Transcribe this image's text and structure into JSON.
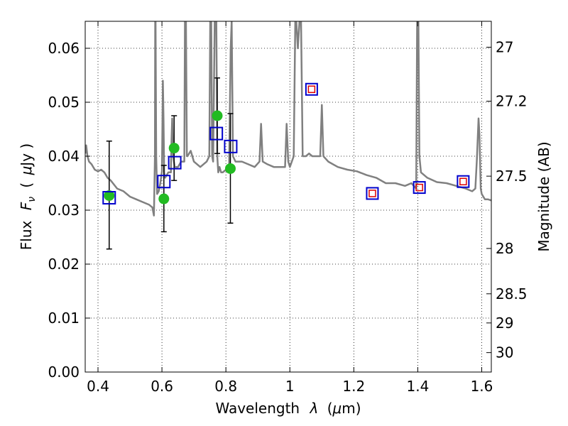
{
  "chart_data": {
    "type": "scatter",
    "xlabel_text": "Wavelength",
    "xlabel_symbol": "λ",
    "xlabel_unit_open": "(",
    "xlabel_unit_mu": "μ",
    "xlabel_unit_rest": "m)",
    "ylabel_text": "Flux",
    "ylabel_symbol": "F",
    "ylabel_subscript": "ν",
    "ylabel_unit_open": "(",
    "ylabel_unit_mu": "μ",
    "ylabel_unit_rest": "Jy )",
    "y2label": "Magnitude (AB)",
    "xlim": [
      0.36,
      1.63
    ],
    "ylim": [
      0.0,
      0.065
    ],
    "grid": true,
    "x_ticks": [
      {
        "value": 0.4,
        "label": "0.4"
      },
      {
        "value": 0.6,
        "label": "0.6"
      },
      {
        "value": 0.8,
        "label": "0.8"
      },
      {
        "value": 1.0,
        "label": "1"
      },
      {
        "value": 1.2,
        "label": "1.2"
      },
      {
        "value": 1.4,
        "label": "1.4"
      },
      {
        "value": 1.6,
        "label": "1.6"
      }
    ],
    "y_ticks": [
      {
        "value": 0.0,
        "label": "0.00"
      },
      {
        "value": 0.01,
        "label": "0.01"
      },
      {
        "value": 0.02,
        "label": "0.02"
      },
      {
        "value": 0.03,
        "label": "0.03"
      },
      {
        "value": 0.04,
        "label": "0.04"
      },
      {
        "value": 0.05,
        "label": "0.05"
      },
      {
        "value": 0.06,
        "label": "0.06"
      }
    ],
    "y2_ticks": [
      {
        "flux": 0.0602,
        "label": "27"
      },
      {
        "flux": 0.0502,
        "label": "27.2"
      },
      {
        "flux": 0.0363,
        "label": "27.5"
      },
      {
        "flux": 0.0229,
        "label": "28"
      },
      {
        "flux": 0.0145,
        "label": "28.5"
      },
      {
        "flux": 0.0091,
        "label": "29"
      },
      {
        "flux": 0.0036,
        "label": "30"
      }
    ],
    "series": [
      {
        "kind": "line",
        "color": "#808080",
        "x": [
          0.36,
          0.363,
          0.367,
          0.372,
          0.38,
          0.39,
          0.4,
          0.41,
          0.42,
          0.43,
          0.44,
          0.46,
          0.48,
          0.5,
          0.52,
          0.54,
          0.56,
          0.57,
          0.575,
          0.578,
          0.579,
          0.58,
          0.582,
          0.585,
          0.59,
          0.595,
          0.6,
          0.603,
          0.605,
          0.607,
          0.61,
          0.62,
          0.628,
          0.63,
          0.632,
          0.635,
          0.64,
          0.65,
          0.66,
          0.67,
          0.672,
          0.675,
          0.678,
          0.68,
          0.69,
          0.7,
          0.72,
          0.74,
          0.748,
          0.751,
          0.754,
          0.757,
          0.76,
          0.765,
          0.77,
          0.773,
          0.776,
          0.78,
          0.785,
          0.79,
          0.8,
          0.81,
          0.815,
          0.818,
          0.822,
          0.83,
          0.85,
          0.87,
          0.89,
          0.905,
          0.91,
          0.915,
          0.93,
          0.95,
          0.97,
          0.985,
          0.99,
          0.995,
          1.0,
          1.012,
          1.017,
          1.02,
          1.025,
          1.03,
          1.035,
          1.04,
          1.045,
          1.05,
          1.06,
          1.07,
          1.08,
          1.095,
          1.1,
          1.105,
          1.12,
          1.15,
          1.18,
          1.21,
          1.24,
          1.27,
          1.3,
          1.33,
          1.36,
          1.38,
          1.395,
          1.398,
          1.4,
          1.402,
          1.405,
          1.41,
          1.43,
          1.46,
          1.49,
          1.52,
          1.55,
          1.57,
          1.58,
          1.585,
          1.59,
          1.593,
          1.597,
          1.6,
          1.61,
          1.62,
          1.63
        ],
        "y": [
          0.0405,
          0.042,
          0.04,
          0.039,
          0.0385,
          0.0375,
          0.0372,
          0.0375,
          0.037,
          0.036,
          0.0355,
          0.034,
          0.0335,
          0.0325,
          0.032,
          0.0315,
          0.031,
          0.0305,
          0.029,
          0.04,
          0.065,
          0.065,
          0.04,
          0.033,
          0.0335,
          0.035,
          0.0372,
          0.054,
          0.047,
          0.037,
          0.036,
          0.037,
          0.037,
          0.043,
          0.047,
          0.04,
          0.038,
          0.038,
          0.039,
          0.039,
          0.065,
          0.065,
          0.04,
          0.04,
          0.041,
          0.039,
          0.038,
          0.039,
          0.04,
          0.065,
          0.065,
          0.04,
          0.039,
          0.065,
          0.065,
          0.04,
          0.037,
          0.038,
          0.037,
          0.037,
          0.0375,
          0.038,
          0.06,
          0.065,
          0.04,
          0.039,
          0.039,
          0.0385,
          0.038,
          0.039,
          0.046,
          0.039,
          0.0385,
          0.038,
          0.038,
          0.038,
          0.046,
          0.039,
          0.038,
          0.04,
          0.065,
          0.065,
          0.06,
          0.065,
          0.065,
          0.04,
          0.04,
          0.04,
          0.0405,
          0.04,
          0.04,
          0.04,
          0.0495,
          0.04,
          0.039,
          0.038,
          0.0375,
          0.0372,
          0.0365,
          0.036,
          0.035,
          0.035,
          0.0345,
          0.035,
          0.034,
          0.065,
          0.065,
          0.065,
          0.04,
          0.037,
          0.036,
          0.0352,
          0.035,
          0.0345,
          0.034,
          0.0335,
          0.034,
          0.0395,
          0.047,
          0.044,
          0.034,
          0.033,
          0.032,
          0.032,
          0.0318
        ]
      },
      {
        "kind": "errorbar",
        "color": "#000000",
        "points": [
          {
            "x": 0.435,
            "ylo": 0.0228,
            "yhi": 0.0428
          },
          {
            "x": 0.606,
            "ylo": 0.026,
            "yhi": 0.0383
          },
          {
            "x": 0.638,
            "ylo": 0.0355,
            "yhi": 0.0475
          },
          {
            "x": 0.773,
            "ylo": 0.0405,
            "yhi": 0.0545
          },
          {
            "x": 0.814,
            "ylo": 0.0276,
            "yhi": 0.0479
          }
        ]
      },
      {
        "kind": "points",
        "marker": "circle",
        "color": "#22bb22",
        "x": [
          0.435,
          0.606,
          0.638,
          0.773,
          0.814
        ],
        "y": [
          0.0327,
          0.0321,
          0.0415,
          0.0475,
          0.0377
        ]
      },
      {
        "kind": "points",
        "marker": "square-open",
        "color": "#0000cc",
        "x": [
          0.435,
          0.606,
          0.64,
          0.77,
          0.815
        ],
        "y": [
          0.0323,
          0.0353,
          0.0388,
          0.0442,
          0.0418
        ]
      },
      {
        "kind": "points",
        "marker": "square-nested",
        "outer_color": "#0000cc",
        "inner_color": "#dd0000",
        "x": [
          1.068,
          1.258,
          1.405,
          1.542
        ],
        "y": [
          0.0524,
          0.0331,
          0.0342,
          0.0353
        ]
      }
    ]
  }
}
